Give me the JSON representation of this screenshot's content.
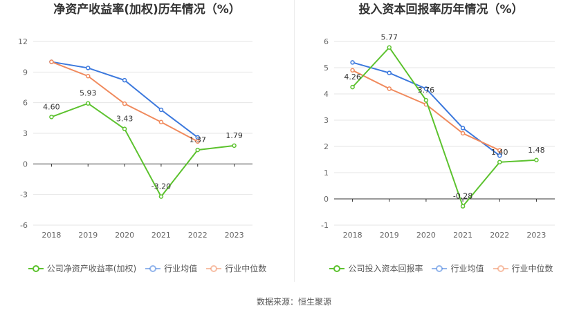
{
  "source_label": "数据来源：恒生聚源",
  "chart_data": [
    {
      "type": "line",
      "title": "净资产收益率(加权)历年情况（%）",
      "x": [
        "2018",
        "2019",
        "2020",
        "2021",
        "2022",
        "2023"
      ],
      "ylim": [
        -6,
        12
      ],
      "yticks": [
        -6,
        -3,
        0,
        3,
        6,
        9,
        12
      ],
      "grid": true,
      "legend_position": "bottom",
      "series": [
        {
          "name": "公司净资产收益率(加权)",
          "color": "#5cc22e",
          "values": [
            4.6,
            5.93,
            3.43,
            -3.2,
            1.37,
            1.79
          ],
          "labels": [
            "4.60",
            "5.93",
            "3.43",
            "-3.20",
            "1.37",
            "1.79"
          ]
        },
        {
          "name": "行业均值",
          "color": "#3b78dd",
          "values": [
            10.0,
            9.4,
            8.2,
            5.3,
            2.6,
            null
          ]
        },
        {
          "name": "行业中位数",
          "color": "#f08a5d",
          "values": [
            10.0,
            8.6,
            5.9,
            4.1,
            2.2,
            null
          ]
        }
      ]
    },
    {
      "type": "line",
      "title": "投入资本回报率历年情况（%）",
      "x": [
        "2018",
        "2019",
        "2020",
        "2021",
        "2022",
        "2023"
      ],
      "ylim": [
        -1,
        6
      ],
      "yticks": [
        -1,
        0,
        1,
        2,
        3,
        4,
        5,
        6
      ],
      "grid": true,
      "legend_position": "bottom",
      "series": [
        {
          "name": "公司投入资本回报率",
          "color": "#5cc22e",
          "values": [
            4.26,
            5.77,
            3.76,
            -0.28,
            1.4,
            1.48
          ],
          "labels": [
            "4.26",
            "5.77",
            "3.76",
            "-0.28",
            "1.40",
            "1.48"
          ]
        },
        {
          "name": "行业均值",
          "color": "#3b78dd",
          "values": [
            5.2,
            4.8,
            4.2,
            2.7,
            1.65,
            null
          ]
        },
        {
          "name": "行业中位数",
          "color": "#f08a5d",
          "values": [
            4.9,
            4.2,
            3.6,
            2.5,
            1.85,
            null
          ]
        }
      ]
    }
  ]
}
